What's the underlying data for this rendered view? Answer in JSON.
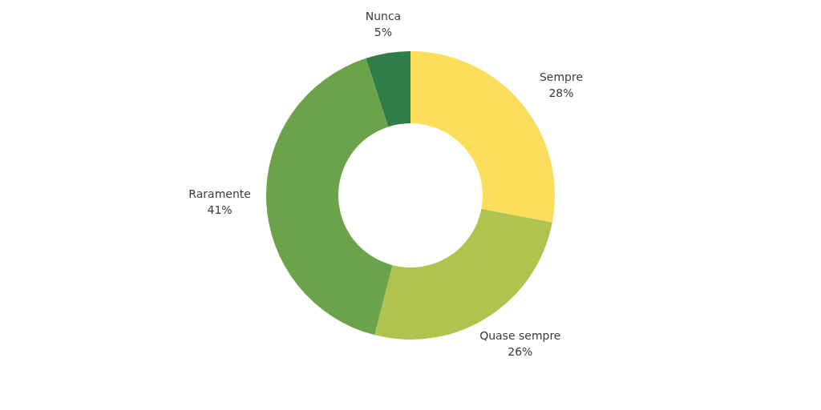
{
  "chart_data": {
    "type": "donut",
    "categories": [
      "Sempre",
      "Quase sempre",
      "Raramente",
      "Nunca"
    ],
    "values": [
      28,
      26,
      41,
      5
    ],
    "colors": [
      "#fddd5c",
      "#b1c34f",
      "#6ba34b",
      "#2f7e48"
    ],
    "value_labels": [
      "28%",
      "26%",
      "41%",
      "5%"
    ],
    "legend": false
  }
}
